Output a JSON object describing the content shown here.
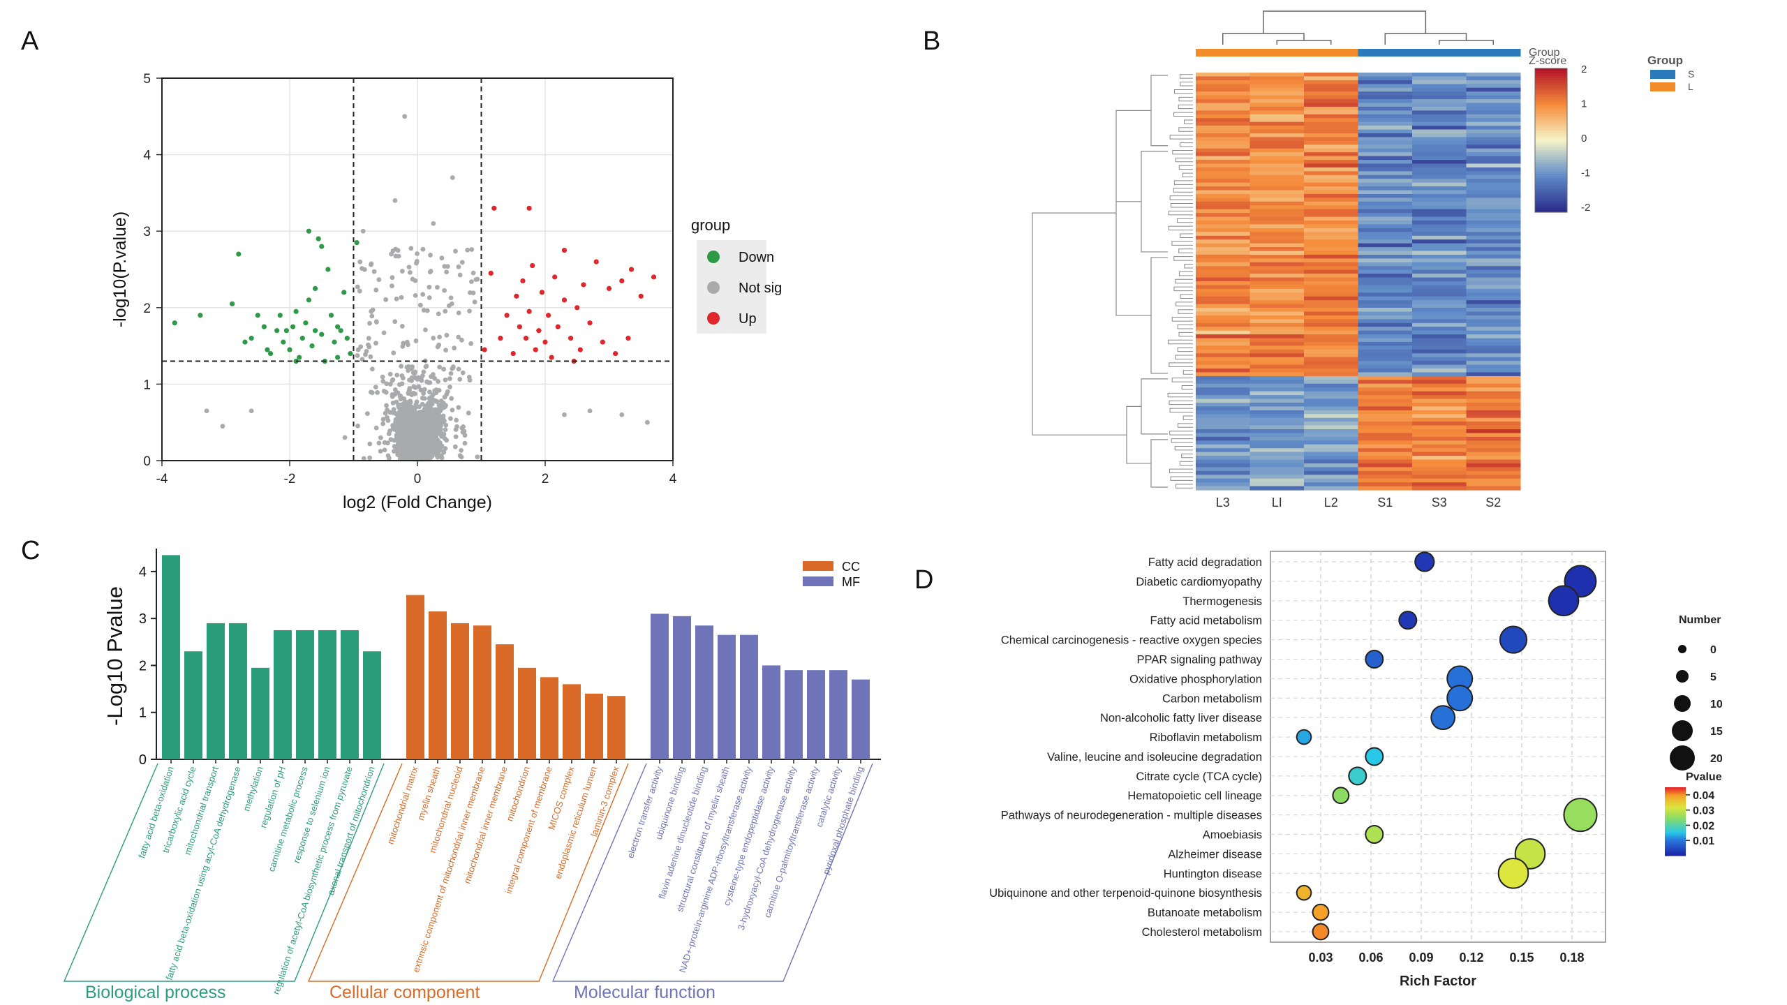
{
  "panels": {
    "a": "A",
    "b": "B",
    "c": "C",
    "d": "D"
  },
  "colors": {
    "down": "#2e9a48",
    "notsig": "#a9aaac",
    "up": "#e0262a",
    "cc": "#d96a27",
    "mf": "#6f74b8",
    "bp": "#2a9d7b",
    "heat_s": "#2b7bba",
    "heat_l": "#f28c2a"
  },
  "chart_data": [
    {
      "id": "A",
      "type": "scatter",
      "title": "",
      "xlabel": "log2  (Fold Change)",
      "ylabel": "-log10(P.value)",
      "xlim": [
        -4,
        4
      ],
      "ylim": [
        0,
        5
      ],
      "xticks": [
        "-4",
        "-2",
        "0",
        "2",
        "4"
      ],
      "yticks": [
        "0",
        "1",
        "2",
        "3",
        "4",
        "5"
      ],
      "thresholds": {
        "x": [
          -1,
          1
        ],
        "y": 1.3
      },
      "legend": {
        "title": "group",
        "items": [
          "Down",
          "Not sig",
          "Up"
        ]
      },
      "series": [
        {
          "name": "Down",
          "points": [
            [
              -3.8,
              1.8
            ],
            [
              -3.4,
              1.9
            ],
            [
              -2.9,
              2.05
            ],
            [
              -2.8,
              2.7
            ],
            [
              -2.6,
              1.6
            ],
            [
              -2.5,
              1.9
            ],
            [
              -2.4,
              1.75
            ],
            [
              -2.3,
              1.4
            ],
            [
              -2.2,
              1.7
            ],
            [
              -2.15,
              1.9
            ],
            [
              -2.1,
              1.55
            ],
            [
              -2.0,
              1.45
            ],
            [
              -1.95,
              1.75
            ],
            [
              -1.9,
              1.95
            ],
            [
              -1.85,
              1.35
            ],
            [
              -1.8,
              1.6
            ],
            [
              -1.75,
              1.8
            ],
            [
              -1.7,
              2.1
            ],
            [
              -1.65,
              1.5
            ],
            [
              -1.6,
              2.25
            ],
            [
              -1.6,
              1.7
            ],
            [
              -1.55,
              2.9
            ],
            [
              -1.5,
              1.65
            ],
            [
              -1.45,
              1.3
            ],
            [
              -1.4,
              2.5
            ],
            [
              -1.35,
              1.9
            ],
            [
              -1.3,
              1.55
            ],
            [
              -1.25,
              1.75
            ],
            [
              -1.2,
              1.7
            ],
            [
              -1.15,
              2.2
            ],
            [
              -1.1,
              1.6
            ],
            [
              -1.05,
              1.4
            ],
            [
              -1.7,
              3.0
            ],
            [
              -1.5,
              2.8
            ],
            [
              -0.95,
              2.85
            ],
            [
              -2.7,
              1.55
            ],
            [
              -2.35,
              1.45
            ],
            [
              -1.9,
              1.3
            ],
            [
              -2.05,
              1.7
            ],
            [
              -1.25,
              1.35
            ]
          ]
        },
        {
          "name": "Up",
          "points": [
            [
              1.2,
              3.3
            ],
            [
              1.75,
              3.3
            ],
            [
              1.3,
              1.6
            ],
            [
              1.4,
              1.9
            ],
            [
              1.5,
              1.4
            ],
            [
              1.55,
              2.15
            ],
            [
              1.6,
              1.75
            ],
            [
              1.7,
              1.6
            ],
            [
              1.75,
              1.95
            ],
            [
              1.8,
              2.55
            ],
            [
              1.85,
              1.45
            ],
            [
              1.9,
              1.7
            ],
            [
              1.95,
              2.2
            ],
            [
              2.0,
              1.55
            ],
            [
              2.05,
              1.9
            ],
            [
              2.1,
              1.35
            ],
            [
              2.15,
              2.4
            ],
            [
              2.2,
              1.75
            ],
            [
              2.3,
              2.1
            ],
            [
              2.4,
              1.6
            ],
            [
              2.5,
              2.0
            ],
            [
              2.55,
              1.45
            ],
            [
              2.6,
              2.3
            ],
            [
              2.7,
              1.8
            ],
            [
              2.8,
              2.6
            ],
            [
              2.9,
              1.55
            ],
            [
              3.0,
              2.25
            ],
            [
              3.2,
              2.35
            ],
            [
              3.3,
              1.6
            ],
            [
              3.35,
              2.5
            ],
            [
              3.5,
              2.15
            ],
            [
              3.7,
              2.4
            ],
            [
              2.3,
              2.75
            ],
            [
              1.65,
              2.35
            ],
            [
              1.05,
              1.45
            ],
            [
              1.15,
              2.45
            ],
            [
              2.45,
              1.3
            ],
            [
              3.1,
              1.4
            ]
          ]
        }
      ]
    },
    {
      "id": "B",
      "type": "heatmap",
      "title": "",
      "columns": [
        "L3",
        "LI",
        "L2",
        "S1",
        "S3",
        "S2"
      ],
      "column_groups": [
        "L",
        "L",
        "L",
        "S",
        "S",
        "S"
      ],
      "annotation_label": "Group",
      "legend_group": {
        "title": "Group",
        "items": [
          "S",
          "L"
        ]
      },
      "colorbar": {
        "title": "Z-score",
        "ticks": [
          "2",
          "1",
          "0",
          "-1",
          "-2"
        ],
        "range": [
          -2,
          2
        ]
      },
      "rows": 110
    },
    {
      "id": "C",
      "type": "bar",
      "title": "",
      "ylabel": "-Log10 Pvalue",
      "ylim": [
        0,
        4.4
      ],
      "yticks": [
        "0",
        "1",
        "2",
        "3",
        "4"
      ],
      "legend": [
        "CC",
        "MF"
      ],
      "groups": [
        {
          "name": "Biological process",
          "key": "BP",
          "categories": [
            "fatty acid beta-oxidation",
            "tricarboxylic acid cycle",
            "mitochondrial transport",
            "fatty acid beta-oxidation using acyl-CoA dehydrogenase",
            "methylation",
            "regulation of pH",
            "carnitine metabolic process",
            "response to selenium ion",
            "regulation of acetyl-CoA biosynthetic process from pyruvate",
            "axonal transport of mitochondrion"
          ],
          "values": [
            4.35,
            2.3,
            2.9,
            2.9,
            1.95,
            2.75,
            2.75,
            2.75,
            2.75,
            2.3
          ]
        },
        {
          "name": "Cellular component",
          "key": "CC",
          "categories": [
            "mitochondrial matrix",
            "myelin sheath",
            "mitochondrial nucleoid",
            "extrinsic component of mitochondrial inner membrane",
            "mitochondrial inner membrane",
            "mitochondrion",
            "integral component of membrane",
            "MICOS complex",
            "endoplasmic reticulum lumen",
            "laminin-3 complex"
          ],
          "values": [
            3.5,
            3.15,
            2.9,
            2.85,
            2.45,
            1.95,
            1.75,
            1.6,
            1.4,
            1.35
          ]
        },
        {
          "name": "Molecular function",
          "key": "MF",
          "categories": [
            "electron transfer activity",
            "ubiquinone binding",
            "flavin adenine dinucleotide binding",
            "structural constituent of myelin sheath",
            "NAD+-protein-arginine ADP-ribosyltransferase activity",
            "cysteine-type endopeptidase activity",
            "3-hydroxyacyl-CoA dehydrogenase activity",
            "carnitine O-palmitoyltransferase activity",
            "catalytic activity",
            "pyridoxal phosphate binding"
          ],
          "values": [
            3.1,
            3.05,
            2.85,
            2.65,
            2.65,
            2.0,
            1.9,
            1.9,
            1.9,
            1.7
          ]
        }
      ]
    },
    {
      "id": "D",
      "type": "scatter",
      "title": "",
      "xlabel": "Rich Factor",
      "xlim": [
        0,
        0.2
      ],
      "xticks": [
        "0.03",
        "0.06",
        "0.09",
        "0.12",
        "0.15",
        "0.18"
      ],
      "size_legend": {
        "title": "Number",
        "items": [
          "0",
          "5",
          "10",
          "15",
          "20"
        ]
      },
      "color_legend": {
        "title": "Pvalue",
        "ticks": [
          "0.04",
          "0.03",
          "0.02",
          "0.01"
        ],
        "range": [
          0.0,
          0.045
        ]
      },
      "pathways": [
        {
          "name": "Fatty acid degradation",
          "rich": 0.092,
          "number": 6,
          "pvalue": 0.002
        },
        {
          "name": "Diabetic cardiomyopathy",
          "rich": 0.185,
          "number": 14,
          "pvalue": 0.001
        },
        {
          "name": "Thermogenesis",
          "rich": 0.175,
          "number": 13,
          "pvalue": 0.001
        },
        {
          "name": "Fatty acid metabolism",
          "rich": 0.082,
          "number": 5,
          "pvalue": 0.002
        },
        {
          "name": "Chemical carcinogenesis - reactive oxygen species",
          "rich": 0.145,
          "number": 11,
          "pvalue": 0.004
        },
        {
          "name": "PPAR signaling pathway",
          "rich": 0.062,
          "number": 5,
          "pvalue": 0.007
        },
        {
          "name": "Oxidative phosphorylation",
          "rich": 0.113,
          "number": 10,
          "pvalue": 0.009
        },
        {
          "name": "Carbon metabolism",
          "rich": 0.113,
          "number": 10,
          "pvalue": 0.009
        },
        {
          "name": "Non-alcoholic fatty liver disease",
          "rich": 0.103,
          "number": 9,
          "pvalue": 0.009
        },
        {
          "name": "Riboflavin metabolism",
          "rich": 0.02,
          "number": 3,
          "pvalue": 0.013
        },
        {
          "name": "Valine, leucine and isoleucine degradation",
          "rich": 0.062,
          "number": 5,
          "pvalue": 0.015
        },
        {
          "name": "Citrate cycle (TCA cycle)",
          "rich": 0.052,
          "number": 5,
          "pvalue": 0.017
        },
        {
          "name": "Hematopoietic cell lineage",
          "rich": 0.042,
          "number": 4,
          "pvalue": 0.025
        },
        {
          "name": "Pathways of neurodegeneration - multiple diseases",
          "rich": 0.185,
          "number": 15,
          "pvalue": 0.026
        },
        {
          "name": "Amoebiasis",
          "rich": 0.062,
          "number": 5,
          "pvalue": 0.028
        },
        {
          "name": "Alzheimer disease",
          "rich": 0.155,
          "number": 13,
          "pvalue": 0.03
        },
        {
          "name": "Huntington disease",
          "rich": 0.145,
          "number": 13,
          "pvalue": 0.032
        },
        {
          "name": "Ubiquinone and other terpenoid-quinone biosynthesis",
          "rich": 0.02,
          "number": 3,
          "pvalue": 0.038
        },
        {
          "name": "Butanoate metabolism",
          "rich": 0.03,
          "number": 4,
          "pvalue": 0.04
        },
        {
          "name": "Cholesterol metabolism",
          "rich": 0.03,
          "number": 4,
          "pvalue": 0.041
        }
      ]
    }
  ]
}
